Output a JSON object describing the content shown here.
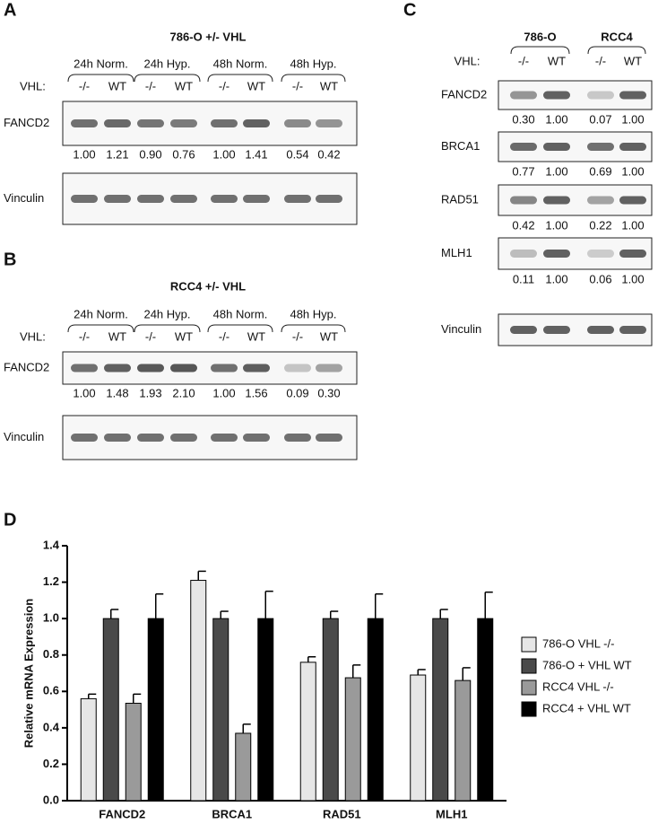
{
  "panel_a": {
    "letter": "A",
    "title": "786-O +/- VHL",
    "vhl_label": "VHL:",
    "groups": [
      "24h Norm.",
      "24h Hyp.",
      "48h Norm.",
      "48h Hyp."
    ],
    "lanes": [
      "-/-",
      "WT",
      "-/-",
      "WT",
      "-/-",
      "WT",
      "-/-",
      "WT"
    ],
    "blots": [
      {
        "label": "FANCD2",
        "quant": [
          "1.00",
          "1.21",
          "0.90",
          "0.76",
          "1.00",
          "1.41",
          "0.54",
          "0.42"
        ]
      },
      {
        "label": "Vinculin"
      }
    ]
  },
  "panel_b": {
    "letter": "B",
    "title": "RCC4 +/- VHL",
    "vhl_label": "VHL:",
    "groups": [
      "24h Norm.",
      "24h Hyp.",
      "48h Norm.",
      "48h Hyp."
    ],
    "lanes": [
      "-/-",
      "WT",
      "-/-",
      "WT",
      "-/-",
      "WT",
      "-/-",
      "WT"
    ],
    "blots": [
      {
        "label": "FANCD2",
        "quant": [
          "1.00",
          "1.48",
          "1.93",
          "2.10",
          "1.00",
          "1.56",
          "0.09",
          "0.30"
        ]
      },
      {
        "label": "Vinculin"
      }
    ]
  },
  "panel_c": {
    "letter": "C",
    "vhl_label": "VHL:",
    "groups": [
      "786-O",
      "RCC4"
    ],
    "lanes": [
      "-/-",
      "WT",
      "-/-",
      "WT"
    ],
    "blots": [
      {
        "label": "FANCD2",
        "quant": [
          "0.30",
          "1.00",
          "0.07",
          "1.00"
        ]
      },
      {
        "label": "BRCA1",
        "quant": [
          "0.77",
          "1.00",
          "0.69",
          "1.00"
        ]
      },
      {
        "label": "RAD51",
        "quant": [
          "0.42",
          "1.00",
          "0.22",
          "1.00"
        ]
      },
      {
        "label": "MLH1",
        "quant": [
          "0.11",
          "1.00",
          "0.06",
          "1.00"
        ]
      },
      {
        "label": "Vinculin"
      }
    ]
  },
  "chart_data": {
    "type": "bar",
    "label": "D",
    "y_label": "Relative mRNA Expression",
    "categories": [
      "FANCD2",
      "BRCA1",
      "RAD51",
      "MLH1"
    ],
    "series": [
      {
        "name": "786-O VHL -/-",
        "color": "#e6e6e6",
        "values": [
          0.56,
          1.21,
          0.76,
          0.69
        ],
        "errors": [
          0.025,
          0.05,
          0.03,
          0.03
        ]
      },
      {
        "name": "786-O + VHL WT",
        "color": "#4a4a4a",
        "values": [
          1.0,
          1.0,
          1.0,
          1.0
        ],
        "errors": [
          0.05,
          0.04,
          0.04,
          0.05
        ]
      },
      {
        "name": "RCC4 VHL -/-",
        "color": "#9a9a9a",
        "values": [
          0.535,
          0.37,
          0.675,
          0.66
        ],
        "errors": [
          0.05,
          0.05,
          0.07,
          0.07
        ]
      },
      {
        "name": "RCC4 + VHL WT",
        "color": "#000000",
        "values": [
          1.0,
          1.0,
          1.0,
          1.0
        ],
        "errors": [
          0.135,
          0.15,
          0.135,
          0.145
        ]
      }
    ],
    "ylim": [
      0,
      1.4
    ],
    "yticks": [
      {
        "value": 0,
        "label": "0.0"
      },
      0.2,
      0.4,
      0.6,
      0.8,
      {
        "value": 1,
        "label": "1.0"
      },
      1.2,
      1.4
    ],
    "legend": "right"
  }
}
